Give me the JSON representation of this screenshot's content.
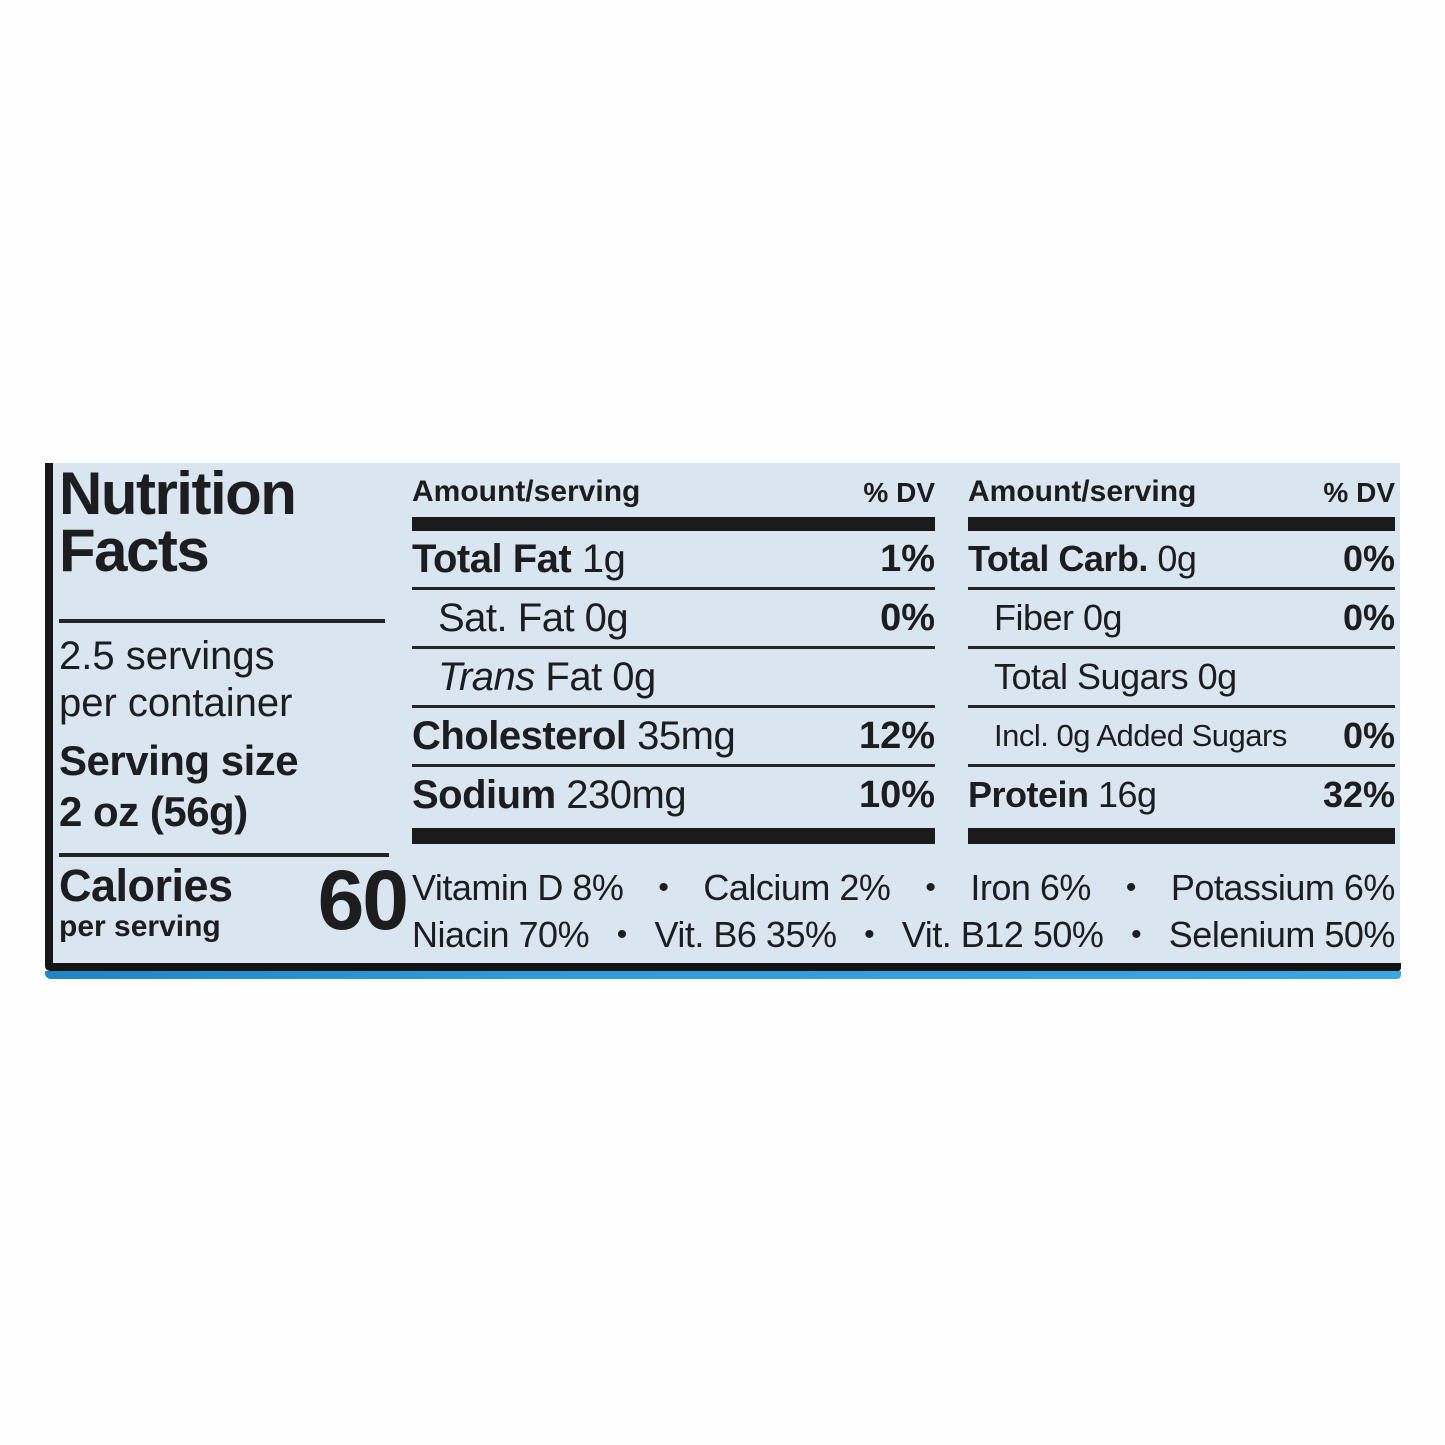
{
  "colors": {
    "label_bg": "#d9e5f1",
    "ink": "#1d1d1f",
    "stripe_blue": "#2e9bdc",
    "page_bg": "#fefefe"
  },
  "label": {
    "title": {
      "line1": "Nutrition",
      "line2": "Facts"
    },
    "servings": {
      "line1": "2.5 servings",
      "line2": "per container"
    },
    "serving_size": {
      "label": "Serving size",
      "value": "2 oz (56g)"
    },
    "calories": {
      "label": "Calories",
      "sub": "per serving",
      "value": "60"
    },
    "bullet": "•",
    "columns": [
      {
        "header": {
          "amount": "Amount/serving",
          "dv": "% DV"
        },
        "rows": [
          {
            "bold": "Total Fat",
            "rest": " 1g",
            "dv": "1%"
          },
          {
            "rest": "Sat. Fat 0g",
            "dv": "0%"
          },
          {
            "italic": "Trans",
            "rest": " Fat 0g",
            "dv": ""
          },
          {
            "bold": "Cholesterol",
            "rest": " 35mg",
            "dv": "12%"
          },
          {
            "bold": "Sodium",
            "rest": " 230mg",
            "dv": "10%"
          }
        ]
      },
      {
        "header": {
          "amount": "Amount/serving",
          "dv": "% DV"
        },
        "rows": [
          {
            "bold": "Total Carb.",
            "rest": " 0g",
            "dv": "0%"
          },
          {
            "rest": "Fiber 0g",
            "dv": "0%"
          },
          {
            "rest": "Total Sugars 0g",
            "dv": ""
          },
          {
            "rest": "Incl. 0g Added Sugars",
            "dv": "0%"
          },
          {
            "bold": "Protein",
            "rest": " 16g",
            "dv": "32%"
          }
        ]
      }
    ],
    "micronutrients": {
      "row1": [
        "Vitamin D 8%",
        "Calcium 2%",
        "Iron 6%",
        "Potassium 6%"
      ],
      "row2": [
        "Niacin 70%",
        "Vit. B6 35%",
        "Vit. B12 50%",
        "Selenium 50%"
      ]
    }
  }
}
